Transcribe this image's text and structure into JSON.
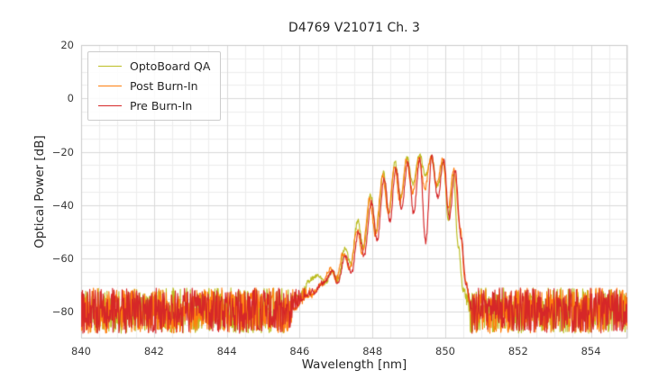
{
  "chart_data": {
    "type": "line",
    "title": "D4769 V21071 Ch. 3",
    "xlabel": "Wavelength [nm]",
    "ylabel": "Optical Power [dB]",
    "xlim": [
      840,
      855
    ],
    "ylim": [
      -90,
      20
    ],
    "xticks": [
      840,
      842,
      844,
      846,
      848,
      850,
      852,
      854
    ],
    "yticks": [
      20,
      0,
      -20,
      -40,
      -60,
      -80
    ],
    "ytick_labels": [
      "20",
      "0",
      "−20",
      "−40",
      "−60",
      "−80"
    ],
    "grid": {
      "major_color": "#d9d9d9",
      "minor_color": "#ededed",
      "x_minor_step": 0.5,
      "y_minor_step": 5
    },
    "legend_position": "upper left",
    "noise_floor": {
      "level_db": -79.5,
      "band_db": [
        -88,
        -71
      ]
    },
    "series": [
      {
        "name": "OptoBoard QA",
        "color": "#bcbd22",
        "seed": 11,
        "signal_points": [
          [
            845.6,
            -79
          ],
          [
            846.0,
            -74
          ],
          [
            846.3,
            -68
          ],
          [
            846.5,
            -66
          ],
          [
            846.7,
            -69
          ],
          [
            846.9,
            -65
          ],
          [
            847.05,
            -68
          ],
          [
            847.25,
            -56
          ],
          [
            847.4,
            -62
          ],
          [
            847.6,
            -46
          ],
          [
            847.75,
            -56
          ],
          [
            847.95,
            -36
          ],
          [
            848.1,
            -50
          ],
          [
            848.3,
            -28
          ],
          [
            848.45,
            -43
          ],
          [
            848.62,
            -24
          ],
          [
            848.78,
            -37
          ],
          [
            848.95,
            -22
          ],
          [
            849.1,
            -32
          ],
          [
            849.3,
            -21
          ],
          [
            849.45,
            -29
          ],
          [
            849.62,
            -21.5
          ],
          [
            849.78,
            -33
          ],
          [
            849.95,
            -24
          ],
          [
            850.08,
            -45
          ],
          [
            850.22,
            -28
          ],
          [
            850.35,
            -55
          ],
          [
            850.5,
            -72
          ],
          [
            850.65,
            -79
          ]
        ]
      },
      {
        "name": "Post Burn-In",
        "color": "#ff7f0e",
        "seed": 22,
        "signal_points": [
          [
            845.8,
            -79
          ],
          [
            846.3,
            -74
          ],
          [
            846.6,
            -70
          ],
          [
            846.85,
            -64
          ],
          [
            847.0,
            -68
          ],
          [
            847.2,
            -58
          ],
          [
            847.38,
            -64
          ],
          [
            847.58,
            -49
          ],
          [
            847.72,
            -58
          ],
          [
            847.92,
            -38
          ],
          [
            848.08,
            -51
          ],
          [
            848.28,
            -29
          ],
          [
            848.44,
            -44
          ],
          [
            848.6,
            -25
          ],
          [
            848.76,
            -39
          ],
          [
            848.93,
            -23
          ],
          [
            849.1,
            -35
          ],
          [
            849.28,
            -22.5
          ],
          [
            849.44,
            -34
          ],
          [
            849.6,
            -22
          ],
          [
            849.76,
            -32
          ],
          [
            849.93,
            -23
          ],
          [
            850.08,
            -41
          ],
          [
            850.24,
            -26
          ],
          [
            850.4,
            -48
          ],
          [
            850.55,
            -68
          ],
          [
            850.7,
            -79
          ]
        ]
      },
      {
        "name": "Pre Burn-In",
        "color": "#d62728",
        "seed": 33,
        "signal_points": [
          [
            845.8,
            -79
          ],
          [
            846.35,
            -73
          ],
          [
            846.65,
            -69
          ],
          [
            846.9,
            -65
          ],
          [
            847.05,
            -69
          ],
          [
            847.25,
            -59
          ],
          [
            847.42,
            -66
          ],
          [
            847.62,
            -50
          ],
          [
            847.77,
            -59
          ],
          [
            847.97,
            -39
          ],
          [
            848.13,
            -53
          ],
          [
            848.32,
            -30
          ],
          [
            848.48,
            -46
          ],
          [
            848.64,
            -26
          ],
          [
            848.8,
            -41
          ],
          [
            848.97,
            -24
          ],
          [
            849.13,
            -43
          ],
          [
            849.3,
            -23
          ],
          [
            849.46,
            -54
          ],
          [
            849.63,
            -22
          ],
          [
            849.79,
            -37
          ],
          [
            849.96,
            -23.5
          ],
          [
            850.11,
            -45
          ],
          [
            850.27,
            -27
          ],
          [
            850.43,
            -52
          ],
          [
            850.58,
            -70
          ],
          [
            850.72,
            -80
          ]
        ]
      }
    ]
  }
}
